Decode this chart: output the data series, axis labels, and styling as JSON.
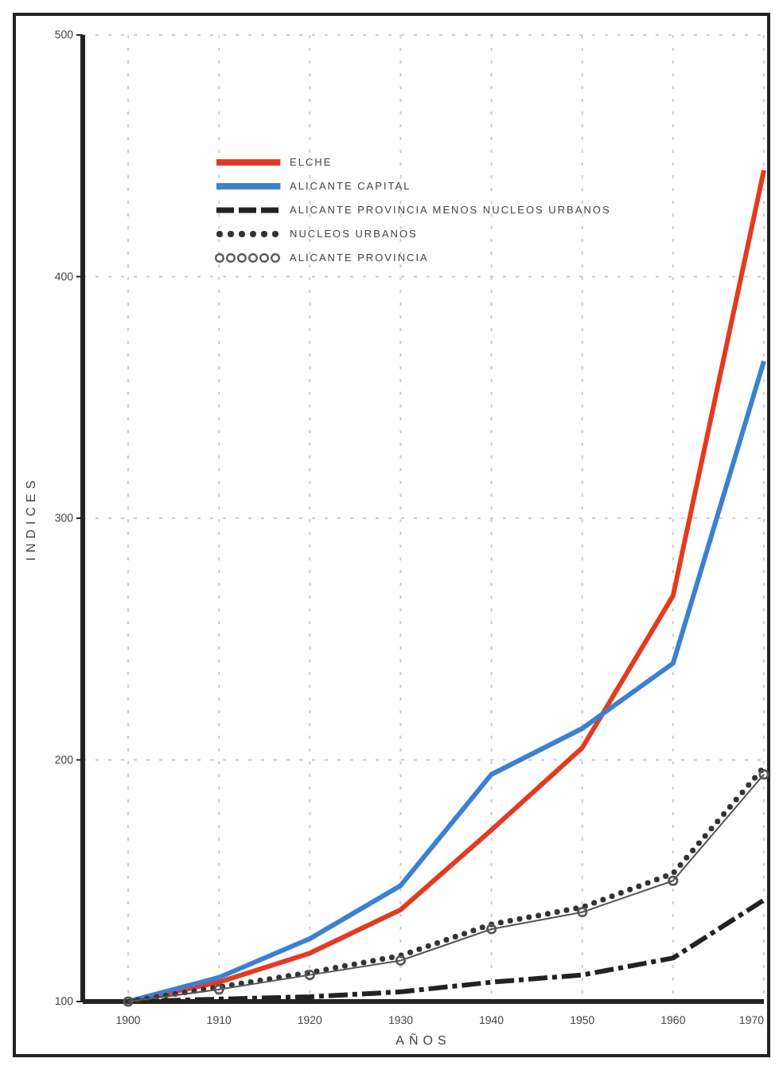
{
  "chart_data": {
    "type": "line",
    "xlabel": "AÑOS",
    "ylabel": "INDICES",
    "x": [
      1900,
      1910,
      1920,
      1930,
      1940,
      1950,
      1960,
      1970
    ],
    "xlim": [
      1895,
      1970
    ],
    "xticks": [
      1900,
      1910,
      1920,
      1930,
      1940,
      1950,
      1960,
      1970
    ],
    "ylim": [
      100,
      500
    ],
    "yticks": [
      100,
      200,
      300,
      400,
      500
    ],
    "grid": true,
    "legend": "top left",
    "series": [
      {
        "name": "ELCHE",
        "color": "#e43a22",
        "line_style": "solid",
        "values": [
          100,
          108,
          120,
          138,
          171,
          205,
          268,
          444
        ]
      },
      {
        "name": "ALICANTE CAPITAL",
        "color": "#3b80d2",
        "line_style": "solid",
        "values": [
          100,
          110,
          126,
          148,
          194,
          213,
          240,
          365
        ]
      },
      {
        "name": "ALICANTE PROVINCIA MENOS NUCLEOS URBANOS",
        "color": "#222222",
        "line_style": "dashed",
        "values": [
          100,
          101,
          102,
          104,
          108,
          111,
          118,
          142
        ]
      },
      {
        "name": "NUCLEOS URBANOS",
        "color": "#333333",
        "line_style": "dotted",
        "values": [
          100,
          106,
          112,
          119,
          132,
          139,
          153,
          197
        ]
      },
      {
        "name": "ALICANTE PROVINCIA",
        "color": "#555555",
        "line_style": "solid",
        "marker": "circle",
        "values": [
          100,
          105,
          111,
          117,
          130,
          137,
          150,
          194
        ]
      }
    ]
  }
}
